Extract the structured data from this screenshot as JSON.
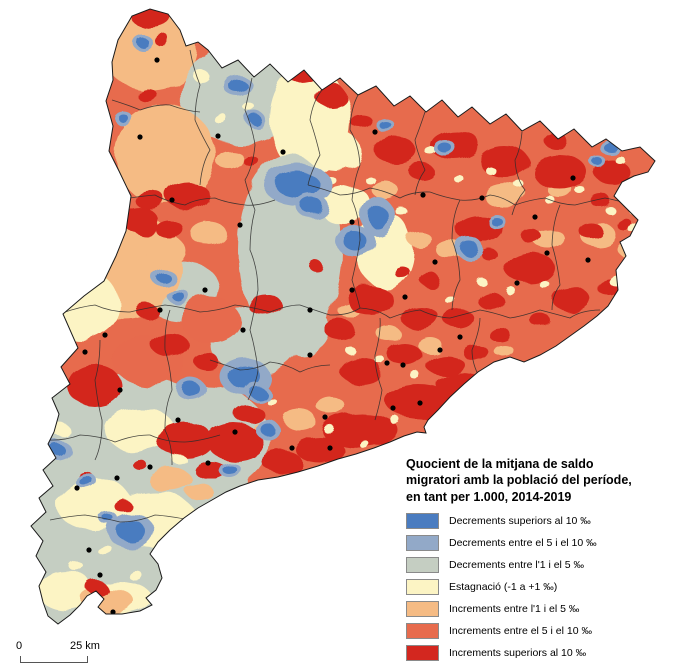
{
  "legend": {
    "title": "Quocient de la mitjana de saldo\nmigratori amb la població del període,\nen tant per 1.000, 2014-2019",
    "items": [
      {
        "label": "Decrements superiors al 10 ‰",
        "color": "#4a7cc0"
      },
      {
        "label": "Decrements entre el 5 i el 10 ‰",
        "color": "#92a9c8"
      },
      {
        "label": "Decrements entre l'1 i el 5 ‰",
        "color": "#c5cec2"
      },
      {
        "label": "Estagnació (-1 a +1 ‰)",
        "color": "#fcf4c4"
      },
      {
        "label": "Increments entre l'1 i el 5 ‰",
        "color": "#f5bb84"
      },
      {
        "label": "Increments entre el 5 i el 10 ‰",
        "color": "#e76b4d"
      },
      {
        "label": "Increments superiors al 10 ‰",
        "color": "#d3271f"
      }
    ]
  },
  "scale_bar": {
    "start_label": "0",
    "end_label": "25 km"
  },
  "map": {
    "outline_color": "#1a1a1a",
    "border_color": "#2b2b2b",
    "dot_color": "#000000"
  }
}
